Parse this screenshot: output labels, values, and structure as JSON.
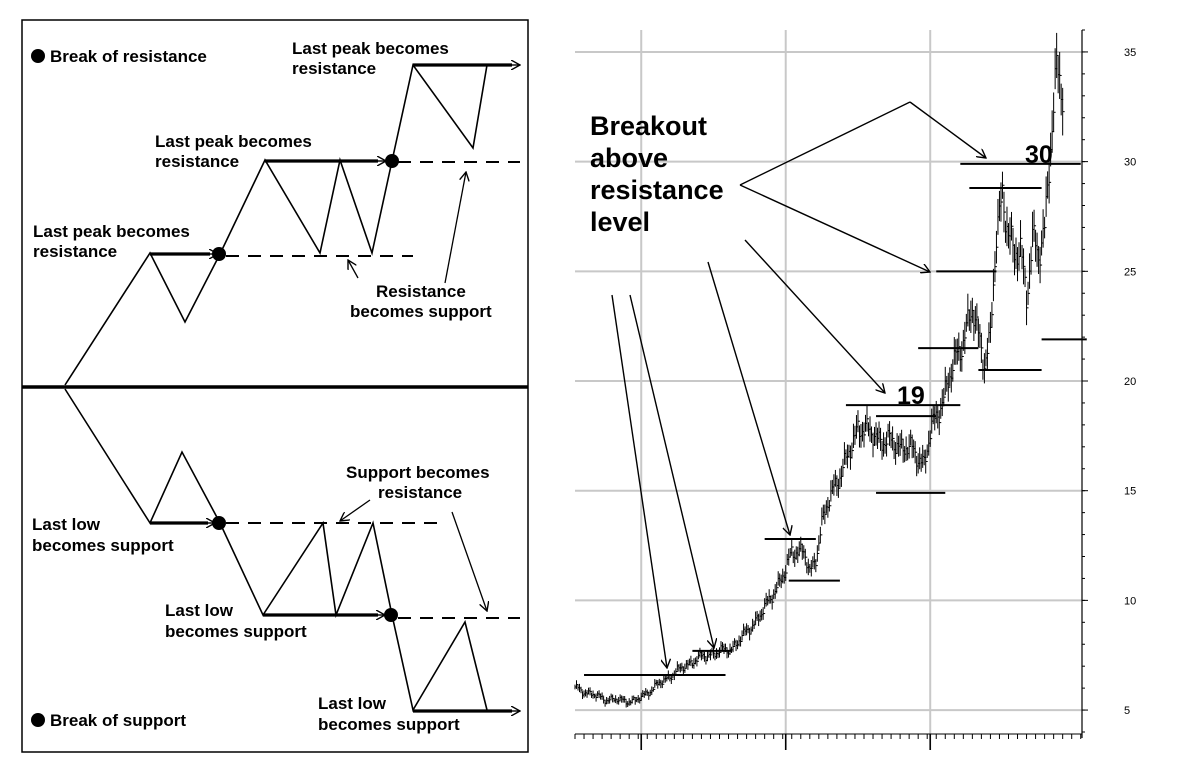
{
  "left_panel": {
    "legend_resistance": "Break of resistance",
    "legend_support": "Break of support",
    "upper_labels": [
      "Last peak becomes",
      "resistance"
    ],
    "resistance_becomes_support": [
      "Resistance",
      "becomes support"
    ],
    "lower_labels": [
      "Last low",
      "becomes support"
    ],
    "support_becomes_resistance": [
      "Support becomes",
      "resistance"
    ]
  },
  "chart_data": {
    "type": "bar",
    "title": "",
    "annotation": [
      "Breakout",
      "above",
      "resistance",
      "level"
    ],
    "level_labels": [
      "19",
      "30"
    ],
    "y_ticks": [
      5,
      10,
      15,
      20,
      25,
      30,
      35
    ],
    "ylim": [
      4,
      36
    ],
    "xlim": [
      0,
      160
    ],
    "grid": true,
    "vertical_gridlines": [
      22,
      70,
      118
    ],
    "resistance_levels": [
      {
        "y": 6.6,
        "x": [
          3,
          50
        ]
      },
      {
        "y": 7.7,
        "x": [
          39,
          52
        ]
      },
      {
        "y": 12.8,
        "x": [
          63,
          80
        ]
      },
      {
        "y": 10.9,
        "x": [
          71,
          88
        ]
      },
      {
        "y": 18.9,
        "x": [
          90,
          128
        ]
      },
      {
        "y": 18.4,
        "x": [
          100,
          120
        ]
      },
      {
        "y": 14.9,
        "x": [
          100,
          123
        ]
      },
      {
        "y": 21.5,
        "x": [
          114,
          134
        ]
      },
      {
        "y": 20.5,
        "x": [
          134,
          155
        ]
      },
      {
        "y": 25.0,
        "x": [
          120,
          140
        ]
      },
      {
        "y": 28.8,
        "x": [
          131,
          155
        ]
      },
      {
        "y": 29.9,
        "x": [
          128,
          168
        ]
      },
      {
        "y": 21.9,
        "x": [
          155,
          170
        ]
      }
    ],
    "price_path": [
      [
        0,
        6.0
      ],
      [
        10,
        5.5
      ],
      [
        20,
        5.4
      ],
      [
        25,
        5.9
      ],
      [
        32,
        6.6
      ],
      [
        40,
        7.3
      ],
      [
        46,
        7.6
      ],
      [
        52,
        7.8
      ],
      [
        56,
        8.4
      ],
      [
        62,
        9.4
      ],
      [
        66,
        10.4
      ],
      [
        70,
        11.3
      ],
      [
        72,
        12.3
      ],
      [
        76,
        12.2
      ],
      [
        78,
        11.2
      ],
      [
        80,
        12.0
      ],
      [
        82,
        13.5
      ],
      [
        86,
        15.2
      ],
      [
        90,
        16.3
      ],
      [
        92,
        17.0
      ],
      [
        94,
        18.0
      ],
      [
        98,
        17.6
      ],
      [
        104,
        17.2
      ],
      [
        110,
        17.0
      ],
      [
        116,
        16.3
      ],
      [
        118,
        17.6
      ],
      [
        120,
        18.3
      ],
      [
        124,
        20.0
      ],
      [
        128,
        21.5
      ],
      [
        130,
        22.5
      ],
      [
        132,
        23.2
      ],
      [
        134,
        22.0
      ],
      [
        136,
        21.0
      ],
      [
        138,
        22.0
      ],
      [
        140,
        26.5
      ],
      [
        142,
        28.5
      ],
      [
        144,
        27.0
      ],
      [
        146,
        25.5
      ],
      [
        148,
        26.0
      ],
      [
        150,
        24.0
      ],
      [
        152,
        26.5
      ],
      [
        154,
        25.5
      ],
      [
        156,
        27.0
      ],
      [
        158,
        31.0
      ],
      [
        160,
        34.0
      ],
      [
        162,
        33.0
      ]
    ]
  }
}
